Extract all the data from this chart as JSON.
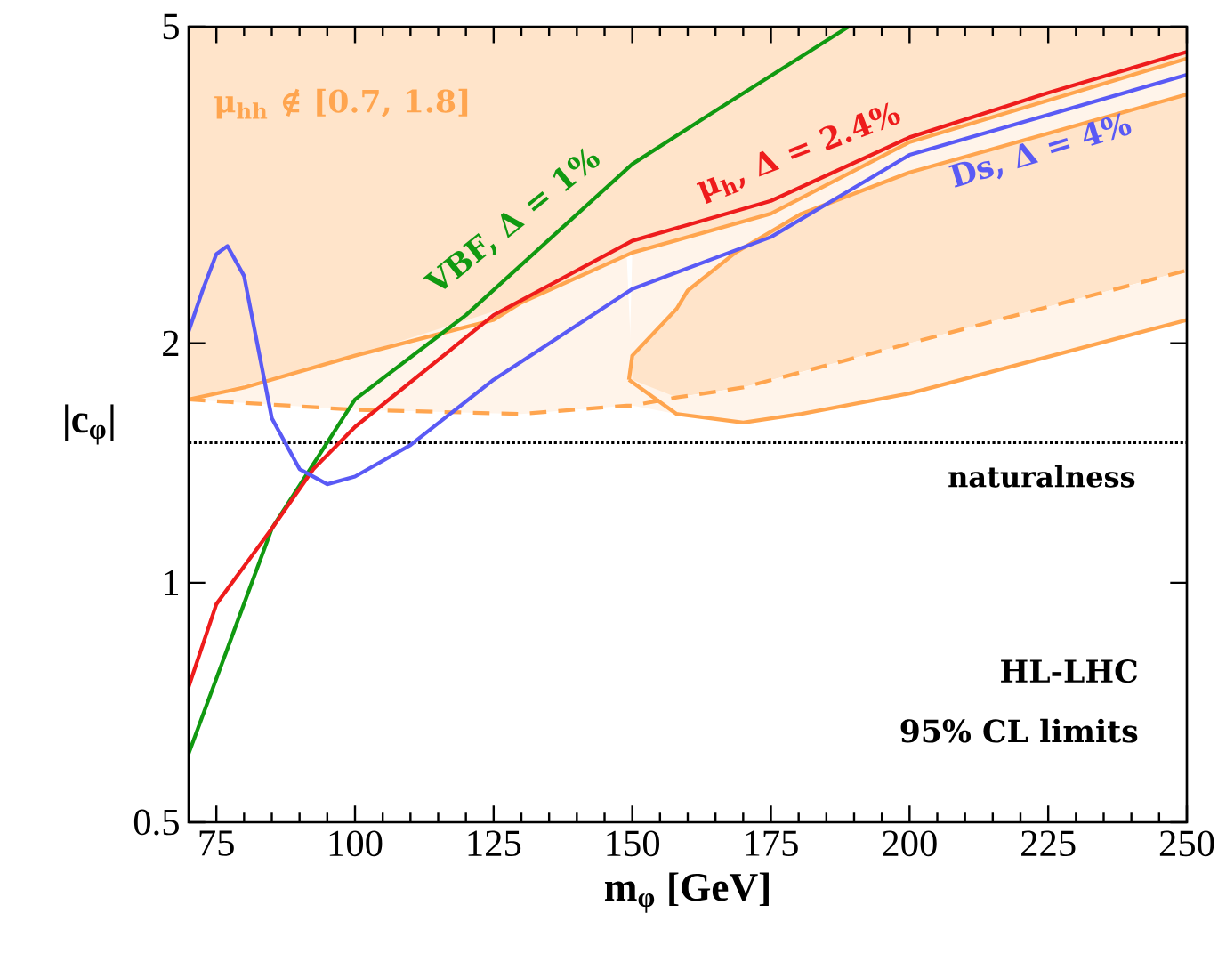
{
  "chart_data": {
    "type": "line",
    "xlabel": "m$_{φ}$ [GeV]",
    "ylabel": "|c$_{φ}$|",
    "xlim": [
      70,
      250
    ],
    "ylim": [
      0.5,
      5
    ],
    "xticks": [
      75,
      100,
      125,
      150,
      175,
      200,
      225,
      250
    ],
    "yticks": [
      0.5,
      1,
      2,
      5
    ],
    "log": "y",
    "grid": false,
    "marker": "none",
    "line_style": "solid",
    "ref_lines": [
      {
        "axis": "y",
        "value": 1.5,
        "label": "naturalness",
        "color": "#000000",
        "line_style": "dotted"
      }
    ],
    "annotations": [
      "HL-LHC",
      "95% CL limits"
    ],
    "series": [
      {
        "name": "μ$_{hh}$ ∉ [0.7, 1.8]",
        "color": "#ffa54f",
        "x": [
          70,
          80,
          100,
          125,
          130,
          150,
          175,
          200,
          250
        ],
        "values": [
          1.7,
          1.76,
          1.93,
          2.14,
          2.25,
          2.6,
          2.91,
          3.58,
          4.56
        ]
      },
      {
        "color": "#ffa54f",
        "line_style": "dashed",
        "x": [
          70,
          100,
          130,
          149,
          150,
          158,
          170,
          180.5,
          200,
          250
        ],
        "values": [
          1.7,
          1.65,
          1.63,
          1.67,
          1.67,
          1.71,
          1.76,
          1.84,
          2.0,
          2.47
        ],
        "lower": [
          1.7,
          1.65,
          1.63,
          1.67,
          1.67,
          1.63,
          1.59,
          1.63,
          1.73,
          2.14
        ],
        "upper": [
          1.7,
          1.93,
          2.25,
          2.58,
          1.8,
          1.71,
          1.76,
          1.84,
          2.0,
          2.47
        ]
      },
      {
        "color": "#ffa54f",
        "x": [
          149.4,
          150,
          158,
          160,
          168.6,
          180.5,
          200,
          250
        ],
        "values": [
          1.8,
          1.93,
          2.21,
          2.33,
          2.6,
          2.91,
          3.28,
          4.11
        ]
      },
      {
        "color": "#ffa54f",
        "x": [
          149.4,
          158,
          170,
          180.5,
          200,
          250
        ],
        "values": [
          1.8,
          1.63,
          1.59,
          1.63,
          1.73,
          2.14
        ]
      },
      {
        "name": "VBF, Δ = 1%",
        "color": "#119911",
        "x": [
          70,
          85,
          100,
          120,
          150,
          165,
          189
        ],
        "values": [
          0.61,
          1.17,
          1.7,
          2.17,
          3.36,
          3.92,
          5.0
        ]
      },
      {
        "name": "μ$_{h}$, Δ = 2.4%",
        "color": "#ee1c1c",
        "x": [
          70,
          75,
          85,
          92.5,
          100,
          125,
          150,
          175,
          200,
          225,
          250
        ],
        "values": [
          0.74,
          0.94,
          1.17,
          1.39,
          1.57,
          2.17,
          2.69,
          3.02,
          3.63,
          4.13,
          4.65
        ]
      },
      {
        "name": "Ds, Δ = 4%",
        "color": "#5a5af5",
        "x": [
          70,
          72.5,
          75,
          77,
          80,
          85,
          90,
          95,
          100,
          110,
          125,
          150,
          175,
          200,
          250
        ],
        "values": [
          2.07,
          2.33,
          2.59,
          2.65,
          2.43,
          1.61,
          1.39,
          1.33,
          1.36,
          1.49,
          1.8,
          2.34,
          2.72,
          3.45,
          4.35
        ]
      }
    ]
  }
}
